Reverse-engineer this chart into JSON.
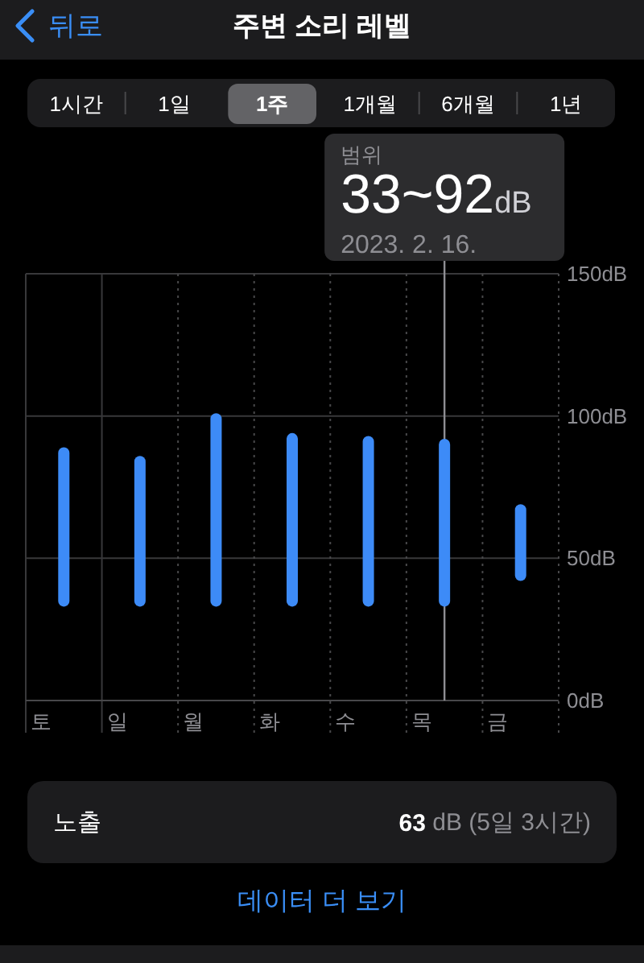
{
  "chart_data": {
    "type": "bar",
    "title": "주변 소리 레벨",
    "categories": [
      "토",
      "일",
      "월",
      "화",
      "수",
      "목",
      "금"
    ],
    "base": [
      33,
      33,
      33,
      33,
      33,
      33,
      42
    ],
    "values": [
      56,
      53,
      68,
      61,
      60,
      59,
      27
    ],
    "color": "#3d8bf7",
    "ylim": [
      0,
      150
    ],
    "yticks": [
      {
        "value": 0,
        "label": "0dB"
      },
      {
        "value": 50,
        "label": "50dB"
      },
      {
        "value": 100,
        "label": "100dB"
      },
      {
        "value": 150,
        "label": "150dB"
      }
    ],
    "grid": true,
    "ref_lines": [
      {
        "axis": "x",
        "value": "목",
        "color": "#8e8e93"
      }
    ],
    "annotations": [
      "뒤로",
      "1시간",
      "1일",
      "1주",
      "1개월",
      "6개월",
      "1년",
      "범위",
      "33~92dB",
      "2023. 2. 16.",
      "노출",
      "63 dB (5일 3시간)",
      "데이터 더 보기"
    ]
  }
}
